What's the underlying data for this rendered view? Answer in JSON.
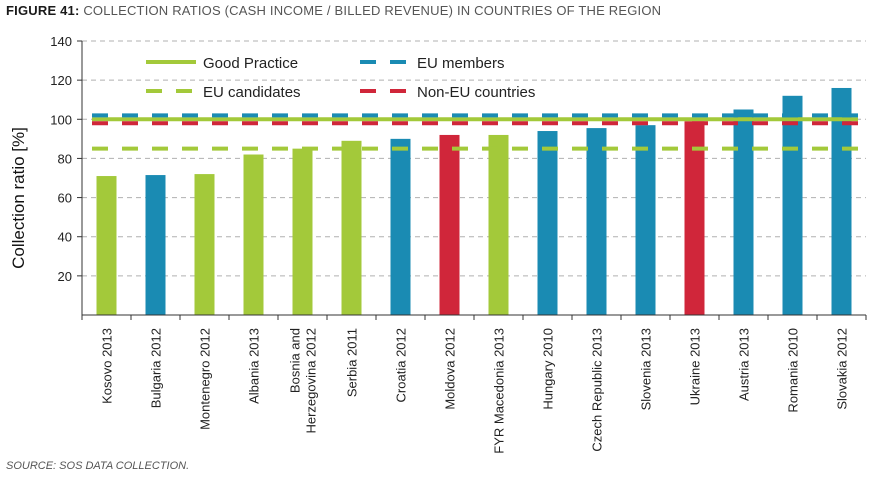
{
  "figure": {
    "number": "FIGURE 41:",
    "title": "COLLECTION RATIOS (CASH INCOME / BILLED REVENUE) IN COUNTRIES OF THE REGION",
    "source": "SOURCE: SOS DATA COLLECTION."
  },
  "colors": {
    "eu_candidate": "#a3c93a",
    "eu_member": "#1a8bb3",
    "non_eu": "#d0263a",
    "good_practice": "#a3c93a",
    "axis": "#333333",
    "grid": "#b0b0b0"
  },
  "chart_data": {
    "type": "bar",
    "ylabel": "Collection ratio [%]",
    "xlabel": "",
    "ylim": [
      0,
      140
    ],
    "yticks": [
      20,
      40,
      60,
      80,
      100,
      120,
      140
    ],
    "grid": "horizontal dashed",
    "legend_position": "top-left",
    "categories": [
      [
        "Kosovo 2013"
      ],
      [
        "Bulgaria 2012"
      ],
      [
        "Montenegro 2012"
      ],
      [
        "Albania 2013"
      ],
      [
        "Bosnia and",
        "Herzegovina 2012"
      ],
      [
        "Serbia 2011"
      ],
      [
        "Croatia 2012"
      ],
      [
        "Moldova 2012"
      ],
      [
        "FYR Macedonia 2013"
      ],
      [
        "Hungary 2010"
      ],
      [
        "Czech Republic 2013"
      ],
      [
        "Slovenia 2013"
      ],
      [
        "Ukraine 2013"
      ],
      [
        "Austria 2013"
      ],
      [
        "Romania 2010"
      ],
      [
        "Slovakia 2012"
      ]
    ],
    "values": [
      71,
      71.5,
      72,
      82,
      85,
      89,
      90,
      92,
      92,
      94,
      95.5,
      97,
      99,
      105,
      112,
      116
    ],
    "groups": [
      "eu_candidate",
      "eu_member",
      "eu_candidate",
      "eu_candidate",
      "eu_candidate",
      "eu_candidate",
      "eu_member",
      "non_eu",
      "eu_candidate",
      "eu_member",
      "eu_member",
      "eu_member",
      "non_eu",
      "eu_member",
      "eu_member",
      "eu_member"
    ],
    "reference_lines": [
      {
        "name": "Good Practice",
        "value": 100,
        "style": "solid",
        "color_key": "good_practice"
      },
      {
        "name": "EU members",
        "value": 102,
        "style": "dashed",
        "color_key": "eu_member"
      },
      {
        "name": "EU candidates",
        "value": 85,
        "style": "dashed",
        "color_key": "eu_candidate"
      },
      {
        "name": "Non-EU countries",
        "value": 98,
        "style": "dashed",
        "color_key": "non_eu"
      }
    ]
  }
}
